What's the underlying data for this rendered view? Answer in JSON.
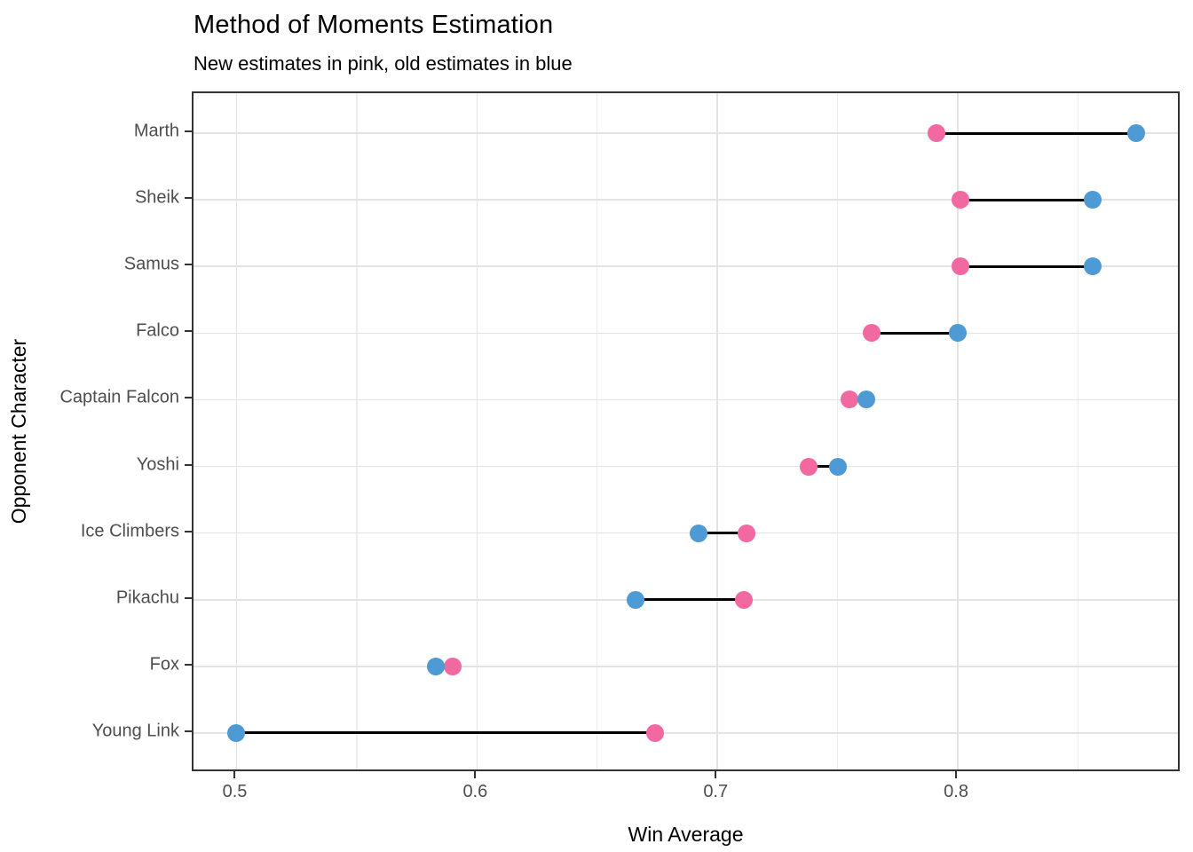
{
  "chart_data": {
    "type": "dumbbell",
    "title": "Method of Moments Estimation",
    "subtitle": "New estimates in pink, old estimates in blue",
    "xlabel": "Win Average",
    "ylabel": "Opponent Character",
    "x_ticks": [
      0.5,
      0.6,
      0.7,
      0.8
    ],
    "x_tick_labels": [
      "0.5",
      "0.6",
      "0.7",
      "0.8"
    ],
    "x_minor_ticks": [
      0.55,
      0.65,
      0.75,
      0.85
    ],
    "xlim": [
      0.4821,
      0.893
    ],
    "grid": true,
    "legend_position": "none",
    "categories": [
      "Marth",
      "Sheik",
      "Samus",
      "Falco",
      "Captain Falcon",
      "Yoshi",
      "Ice Climbers",
      "Pikachu",
      "Fox",
      "Young Link"
    ],
    "series": [
      {
        "name": "New estimate (pink)",
        "color": "#F268A1",
        "values": [
          0.791,
          0.801,
          0.801,
          0.764,
          0.755,
          0.738,
          0.712,
          0.711,
          0.59,
          0.674
        ]
      },
      {
        "name": "Old estimate (blue)",
        "color": "#4D9AD4",
        "values": [
          0.874,
          0.856,
          0.856,
          0.8,
          0.762,
          0.75,
          0.692,
          0.666,
          0.583,
          0.5
        ]
      }
    ],
    "connector_color": "#000000"
  },
  "style_colors": {
    "panel_border": "#333333",
    "major_gridline": "#e3e3e3",
    "minor_gridline": "#ededed",
    "tick_label": "#4d4d4d",
    "background": "#ffffff"
  }
}
